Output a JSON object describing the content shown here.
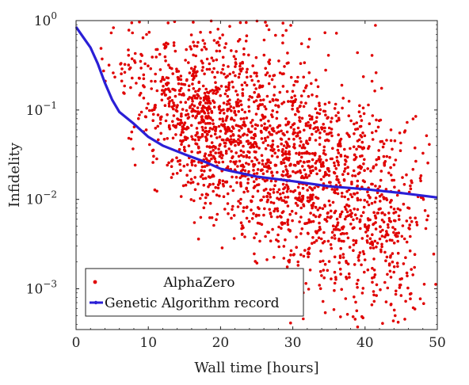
{
  "chart_data": {
    "type": "scatter",
    "xlabel": "Wall time [hours]",
    "ylabel": "Infidelity",
    "xlim": [
      0,
      50
    ],
    "ylim": [
      0.00035,
      1.0
    ],
    "yscale": "log",
    "xticks": [
      "0",
      "10",
      "20",
      "30",
      "40",
      "50"
    ],
    "yticks": [
      {
        "base": "10",
        "exp": "0"
      },
      {
        "base": "10",
        "exp": "−1"
      },
      {
        "base": "10",
        "exp": "−2"
      },
      {
        "base": "10",
        "exp": "−3"
      }
    ],
    "legend_position": "bottom-left",
    "grid": false,
    "series": [
      {
        "name": "AlphaZero",
        "kind": "scatter",
        "color": "#e00000",
        "trend_x": [
          0,
          2,
          5,
          10,
          15,
          20,
          25,
          30,
          35,
          40,
          45,
          50
        ],
        "trend_y": [
          0.9,
          0.7,
          0.35,
          0.15,
          0.09,
          0.06,
          0.04,
          0.025,
          0.014,
          0.008,
          0.005,
          0.004
        ],
        "spread_decades": [
          0.12,
          0.25,
          0.35,
          0.4,
          0.45,
          0.5,
          0.55,
          0.6,
          0.65,
          0.65,
          0.6,
          0.6
        ],
        "approx_points": 2200
      },
      {
        "name": "Genetic Algorithm record",
        "kind": "line",
        "color": "#2a1fd6",
        "x": [
          0,
          1,
          2,
          3,
          4,
          5,
          6,
          8,
          10,
          12,
          15,
          18,
          20,
          25,
          30,
          35,
          40,
          45,
          50
        ],
        "y": [
          0.85,
          0.65,
          0.5,
          0.33,
          0.2,
          0.13,
          0.095,
          0.07,
          0.05,
          0.04,
          0.032,
          0.026,
          0.022,
          0.018,
          0.016,
          0.014,
          0.013,
          0.0118,
          0.0105
        ]
      }
    ]
  }
}
